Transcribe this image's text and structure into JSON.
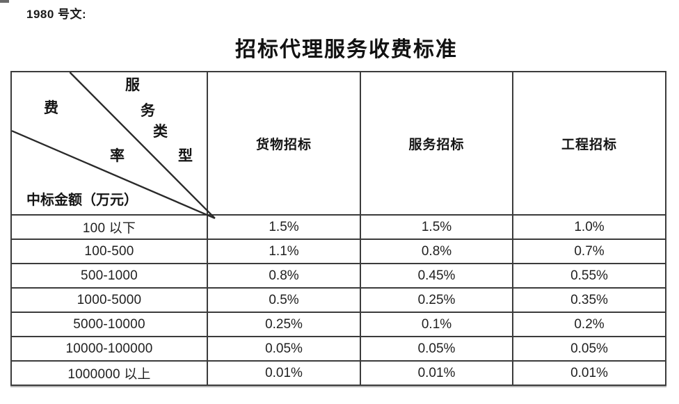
{
  "document": {
    "doc_ref": "1980 号文:",
    "title": "招标代理服务收费标准"
  },
  "table": {
    "corner": {
      "fee_chars": [
        "费",
        "率"
      ],
      "service_type_chars": [
        "服",
        "务",
        "类",
        "型"
      ],
      "amount_label": "中标金额（万元）"
    },
    "column_headers": [
      "货物招标",
      "服务招标",
      "工程招标"
    ],
    "rows": [
      {
        "range": "100 以下",
        "values": [
          "1.5%",
          "1.5%",
          "1.0%"
        ]
      },
      {
        "range": "100-500",
        "values": [
          "1.1%",
          "0.8%",
          "0.7%"
        ]
      },
      {
        "range": "500-1000",
        "values": [
          "0.8%",
          "0.45%",
          "0.55%"
        ]
      },
      {
        "range": "1000-5000",
        "values": [
          "0.5%",
          "0.25%",
          "0.35%"
        ]
      },
      {
        "range": "5000-10000",
        "values": [
          "0.25%",
          "0.1%",
          "0.2%"
        ]
      },
      {
        "range": "10000-100000",
        "values": [
          "0.05%",
          "0.05%",
          "0.05%"
        ]
      },
      {
        "range": "1000000 以上",
        "values": [
          "0.01%",
          "0.01%",
          "0.01%"
        ]
      }
    ]
  },
  "colors": {
    "background": "#ffffff",
    "text": "#1c1c1c",
    "border": "#3b3b3b"
  }
}
